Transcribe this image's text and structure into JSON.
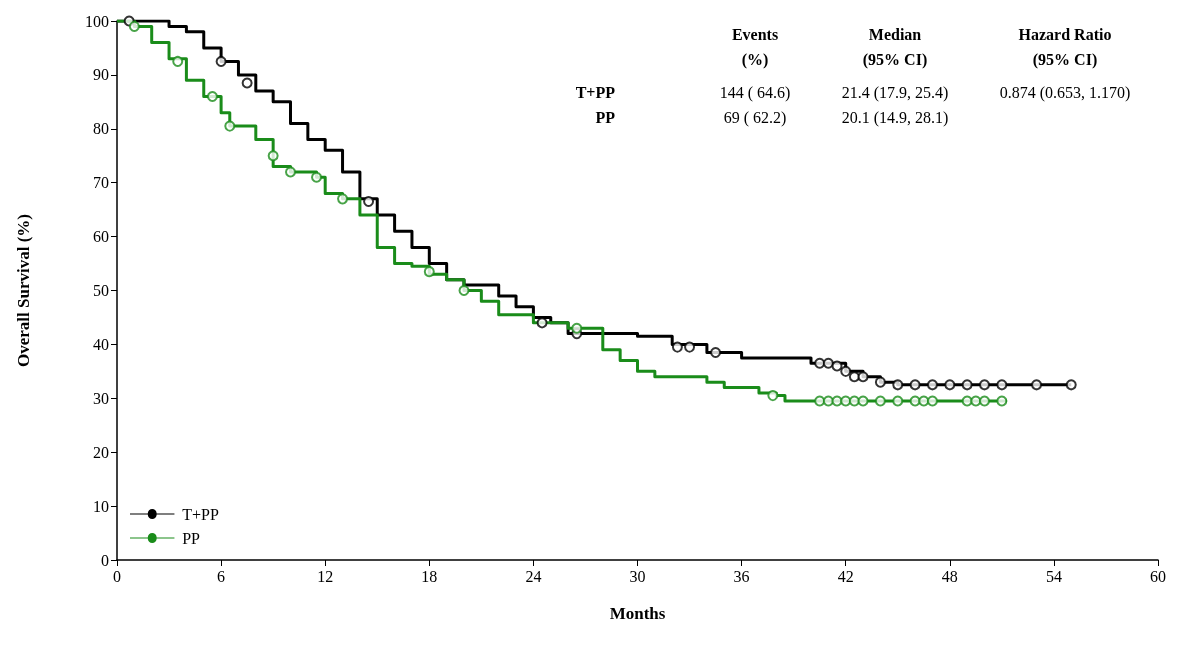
{
  "chart_data": {
    "type": "step",
    "xlabel": "Months",
    "ylabel": "Overall Survival (%)",
    "xlim": [
      0,
      60
    ],
    "xticks": [
      0,
      6,
      12,
      18,
      24,
      30,
      36,
      42,
      48,
      54,
      60
    ],
    "ylim": [
      0,
      100
    ],
    "yticks": [
      0,
      10,
      20,
      30,
      40,
      50,
      60,
      70,
      80,
      90,
      100
    ],
    "grid": false,
    "legend": "bottom left",
    "marker": "circle",
    "annotations": [
      "Events\n(%)",
      "Median\n(95% CI)",
      "Hazard Ratio\n(95% CI)",
      "T+PP",
      "144 ( 64.6)",
      "21.4 (17.9, 25.4)",
      "0.874 (0.653, 1.170)",
      "PP",
      "69 ( 62.2)",
      "20.1 (14.9, 28.1)"
    ],
    "series": [
      {
        "name": "T+PP",
        "color": "#000000",
        "marker": "none",
        "x": [
          0,
          2,
          3,
          4,
          5,
          6,
          7,
          8,
          9,
          10,
          11,
          12,
          13,
          14,
          15,
          16,
          17,
          18,
          19,
          20,
          22,
          23,
          24,
          25,
          26,
          28,
          30,
          32,
          34,
          36,
          39,
          40,
          42,
          43,
          44,
          45,
          55
        ],
        "values": [
          100,
          100,
          99,
          98,
          95,
          92.5,
          90,
          87,
          85,
          81,
          78,
          76,
          72,
          67,
          64,
          61,
          58,
          55,
          52,
          51,
          49,
          47,
          45,
          44,
          42,
          42,
          41.5,
          40,
          38.5,
          37.5,
          37.5,
          36.5,
          35,
          34,
          33,
          32.5,
          32.5
        ]
      },
      {
        "name": "PP",
        "color": "#1a8c1a",
        "marker": "none",
        "x": [
          0,
          1,
          2,
          3,
          4,
          5,
          6,
          6.5,
          8,
          9,
          10,
          11.5,
          12,
          13,
          14,
          15,
          16,
          17,
          18,
          19,
          20,
          21,
          22,
          24,
          26,
          27.5,
          28,
          29,
          30,
          31,
          34,
          35,
          37,
          38,
          38.5,
          51.3
        ],
        "values": [
          100,
          99,
          96,
          93,
          89,
          86,
          83,
          80.5,
          78,
          73,
          72,
          71,
          68,
          67,
          64,
          58,
          55,
          54.5,
          53,
          52,
          50,
          48,
          45.5,
          44,
          43,
          43,
          39,
          37,
          35,
          34,
          33,
          32,
          31,
          30.5,
          29.5,
          29.5
        ]
      },
      {
        "type": "scatter",
        "color": "#000000",
        "x": [
          0.7,
          6,
          7.5,
          14.5,
          24.5,
          26.5,
          32.3,
          33,
          34.5,
          40.5,
          41,
          41.5,
          42,
          42.5,
          43,
          44,
          45,
          46,
          47,
          48,
          49,
          50,
          51,
          53,
          55
        ],
        "values": [
          100,
          92.5,
          88.5,
          66.5,
          44,
          42,
          39.5,
          39.5,
          38.5,
          36.5,
          36.5,
          36,
          35,
          34,
          34,
          33,
          32.5,
          32.5,
          32.5,
          32.5,
          32.5,
          32.5,
          32.5,
          32.5,
          32.5
        ]
      },
      {
        "type": "scatter",
        "color": "#1a8c1a",
        "x": [
          1,
          3.5,
          5.5,
          6.5,
          9,
          10,
          11.5,
          13,
          18,
          20,
          26.5,
          37.8,
          40.5,
          41,
          41.5,
          42,
          42.5,
          43,
          44,
          45,
          46,
          46.5,
          47,
          49,
          49.5,
          50,
          51
        ],
        "values": [
          99,
          92.5,
          86,
          80.5,
          75,
          72,
          71,
          67,
          53.5,
          50,
          43,
          30.5,
          29.5,
          29.5,
          29.5,
          29.5,
          29.5,
          29.5,
          29.5,
          29.5,
          29.5,
          29.5,
          29.5,
          29.5,
          29.5,
          29.5,
          29.5
        ]
      }
    ]
  }
}
